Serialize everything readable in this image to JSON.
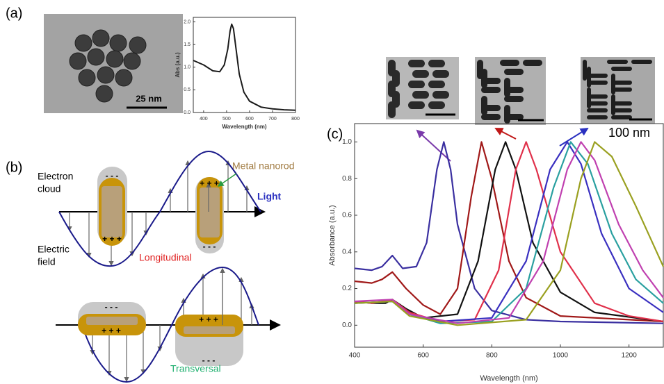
{
  "panels": {
    "a": "(a)",
    "b": "(b)",
    "c": "(c)"
  },
  "tem": {
    "scale_a": "25 nm",
    "scale_c": "100 nm"
  },
  "diagram": {
    "electron_cloud": [
      "Electron",
      "cloud"
    ],
    "metal_nanorod": "Metal nanorod",
    "light": "Light",
    "electric_field": [
      "Electric",
      "field"
    ],
    "longitudinal": "Longitudinal",
    "transversal": "Transversal",
    "minus": "- - -",
    "plus": "+ + +"
  },
  "chart_data": [
    {
      "type": "line",
      "x_label": "Wavelength (nm)",
      "y_label": "Abs  (a.u.)",
      "xlim": [
        355,
        800
      ],
      "ylim": [
        0,
        2.1
      ],
      "xticks": [
        400,
        500,
        600,
        700,
        800
      ],
      "yticks": [
        {
          "value": 0,
          "label": "0.0"
        },
        {
          "value": 0.5,
          "label": "0.5"
        },
        {
          "value": 1,
          "label": "1.0"
        },
        {
          "value": 1.5,
          "label": "1.5"
        },
        {
          "value": 2,
          "label": "2.0"
        }
      ],
      "series": [
        {
          "color": "#1a1a1a",
          "x": [
            355,
            400,
            440,
            470,
            490,
            505,
            515,
            522,
            530,
            540,
            555,
            575,
            600,
            650,
            700,
            750,
            800
          ],
          "values": [
            1.15,
            1.05,
            0.92,
            0.9,
            1.05,
            1.4,
            1.8,
            1.95,
            1.85,
            1.45,
            0.85,
            0.45,
            0.25,
            0.12,
            0.08,
            0.06,
            0.05
          ]
        }
      ]
    },
    {
      "type": "line",
      "x_label": "Wavelength (nm)",
      "y_label": "Absorbance (a.u.)",
      "xlim": [
        400,
        1300
      ],
      "ylim": [
        -0.12,
        1.1
      ],
      "xticks": [
        400,
        600,
        800,
        1000,
        1200
      ],
      "yticks": [
        {
          "value": 0,
          "label": "0.0"
        },
        {
          "value": 0.2,
          "label": "0.2"
        },
        {
          "value": 0.4,
          "label": "0.4"
        },
        {
          "value": 0.6,
          "label": "0.6"
        },
        {
          "value": 0.8,
          "label": "0.8"
        },
        {
          "value": 1,
          "label": "1.0"
        }
      ],
      "series": [
        {
          "color": "#3a2fa0",
          "x": [
            400,
            450,
            480,
            510,
            540,
            580,
            610,
            640,
            660,
            680,
            700,
            750,
            800,
            900,
            1000,
            1300
          ],
          "values": [
            0.31,
            0.3,
            0.32,
            0.38,
            0.31,
            0.32,
            0.45,
            0.85,
            1.0,
            0.85,
            0.55,
            0.2,
            0.08,
            0.03,
            0.02,
            0.01
          ]
        },
        {
          "color": "#a01818",
          "x": [
            400,
            450,
            480,
            510,
            550,
            600,
            650,
            700,
            740,
            770,
            800,
            850,
            900,
            1000,
            1300
          ],
          "values": [
            0.24,
            0.23,
            0.25,
            0.29,
            0.2,
            0.11,
            0.06,
            0.2,
            0.7,
            1.0,
            0.8,
            0.35,
            0.15,
            0.05,
            0.02
          ]
        },
        {
          "color": "#111111",
          "x": [
            400,
            450,
            490,
            510,
            550,
            600,
            700,
            760,
            810,
            840,
            870,
            920,
            1000,
            1100,
            1300
          ],
          "values": [
            0.13,
            0.12,
            0.12,
            0.14,
            0.09,
            0.04,
            0.06,
            0.35,
            0.85,
            1.0,
            0.85,
            0.45,
            0.18,
            0.07,
            0.02
          ]
        },
        {
          "color": "#e0304a",
          "x": [
            400,
            450,
            510,
            560,
            650,
            750,
            820,
            870,
            900,
            930,
            1000,
            1100,
            1200,
            1300
          ],
          "values": [
            0.13,
            0.12,
            0.14,
            0.07,
            0.02,
            0.03,
            0.3,
            0.85,
            1.0,
            0.85,
            0.4,
            0.12,
            0.05,
            0.02
          ]
        },
        {
          "color": "#3a30c0",
          "x": [
            400,
            510,
            560,
            650,
            800,
            900,
            970,
            1020,
            1060,
            1120,
            1200,
            1300
          ],
          "values": [
            0.12,
            0.13,
            0.06,
            0.02,
            0.04,
            0.35,
            0.85,
            1.0,
            0.88,
            0.5,
            0.2,
            0.07
          ]
        },
        {
          "color": "#2aa0a0",
          "x": [
            400,
            510,
            560,
            650,
            800,
            900,
            980,
            1030,
            1080,
            1150,
            1220,
            1300
          ],
          "values": [
            0.12,
            0.13,
            0.06,
            0.01,
            0.02,
            0.2,
            0.75,
            1.0,
            0.88,
            0.5,
            0.25,
            0.12
          ]
        },
        {
          "color": "#c040b0",
          "x": [
            400,
            510,
            560,
            700,
            850,
            950,
            1020,
            1060,
            1100,
            1170,
            1240,
            1300
          ],
          "values": [
            0.13,
            0.14,
            0.06,
            0.01,
            0.04,
            0.35,
            0.85,
            1.0,
            0.9,
            0.55,
            0.3,
            0.15
          ]
        },
        {
          "color": "#9aa020",
          "x": [
            400,
            510,
            560,
            700,
            900,
            1000,
            1060,
            1100,
            1150,
            1220,
            1300
          ],
          "values": [
            0.12,
            0.13,
            0.05,
            0.0,
            0.03,
            0.3,
            0.8,
            1.0,
            0.92,
            0.65,
            0.32
          ]
        }
      ]
    }
  ]
}
